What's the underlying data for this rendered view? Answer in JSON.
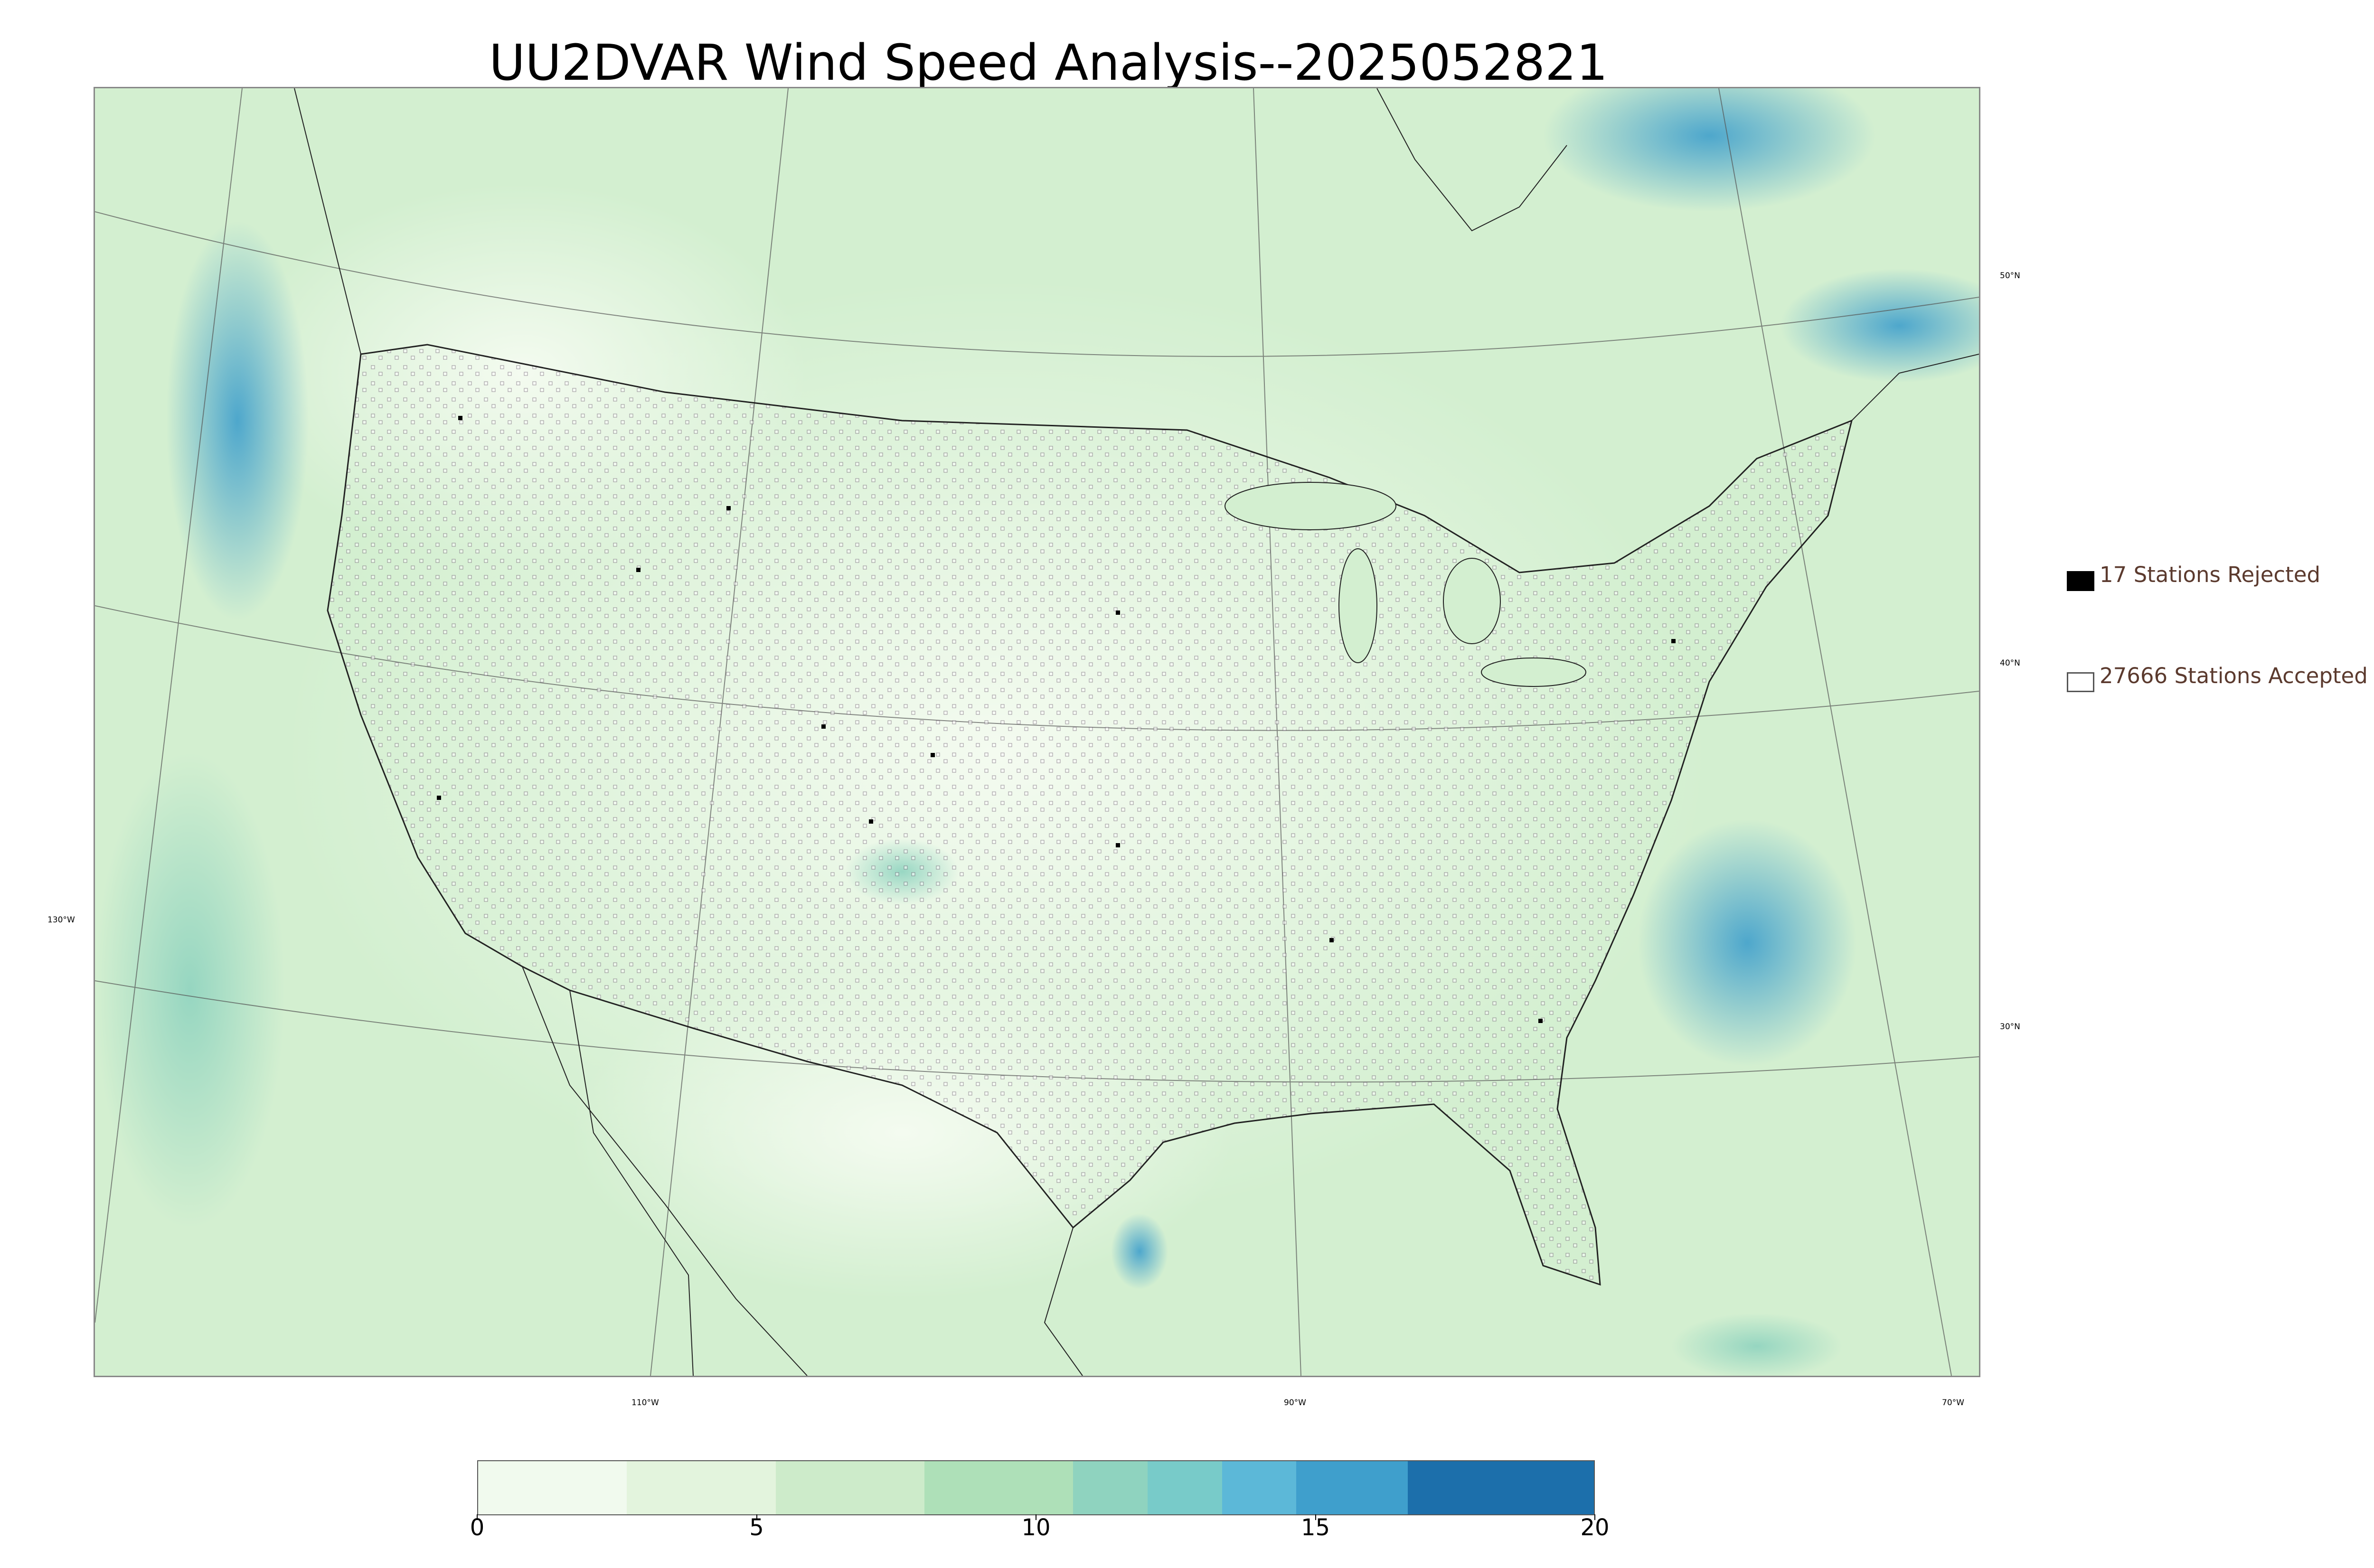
{
  "title": "UU2DVAR Wind Speed Analysis--2025052821",
  "map": {
    "projection": "lambert-conformal",
    "latitude_labels": [
      "50°N",
      "40°N",
      "30°N"
    ],
    "longitude_labels": [
      "130°W",
      "110°W",
      "90°W",
      "70°W"
    ],
    "field": "wind speed",
    "colormap": "green-blue"
  },
  "legend": {
    "rejected_label": "17 Stations Rejected",
    "accepted_label": "27666 Stations Accepted",
    "rejected_color": "#000000",
    "accepted_color": "#ffffff"
  },
  "colorbar": {
    "ticks": [
      "0",
      "5",
      "10",
      "15",
      "20"
    ],
    "range": [
      0,
      20
    ],
    "colors": [
      "#f1faee",
      "#e3f4dd",
      "#cdebca",
      "#aee0b8",
      "#8fd3bf",
      "#78cbc9",
      "#5cb8d8",
      "#3f9fcc",
      "#1c6fab"
    ]
  }
}
